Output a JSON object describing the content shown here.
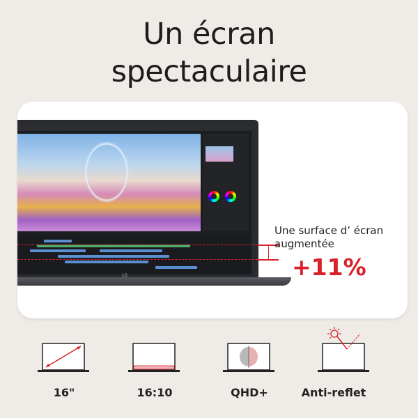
{
  "headline": {
    "line1": "Un écran",
    "line2": "spectaculaire"
  },
  "callout": {
    "description_line1": "Une surface d’ écran",
    "description_line2": "augmentée",
    "increase": "+11%"
  },
  "laptop": {
    "brand_logo": "LG"
  },
  "features": [
    {
      "icon": "diagonal-size-icon",
      "label": "16\""
    },
    {
      "icon": "aspect-ratio-icon",
      "label": "16:10"
    },
    {
      "icon": "resolution-icon",
      "label": "QHD+"
    },
    {
      "icon": "anti-glare-icon",
      "label": "Anti-reflet"
    }
  ],
  "colors": {
    "accent": "#d8212a",
    "background": "#efece7",
    "card": "#ffffff"
  }
}
